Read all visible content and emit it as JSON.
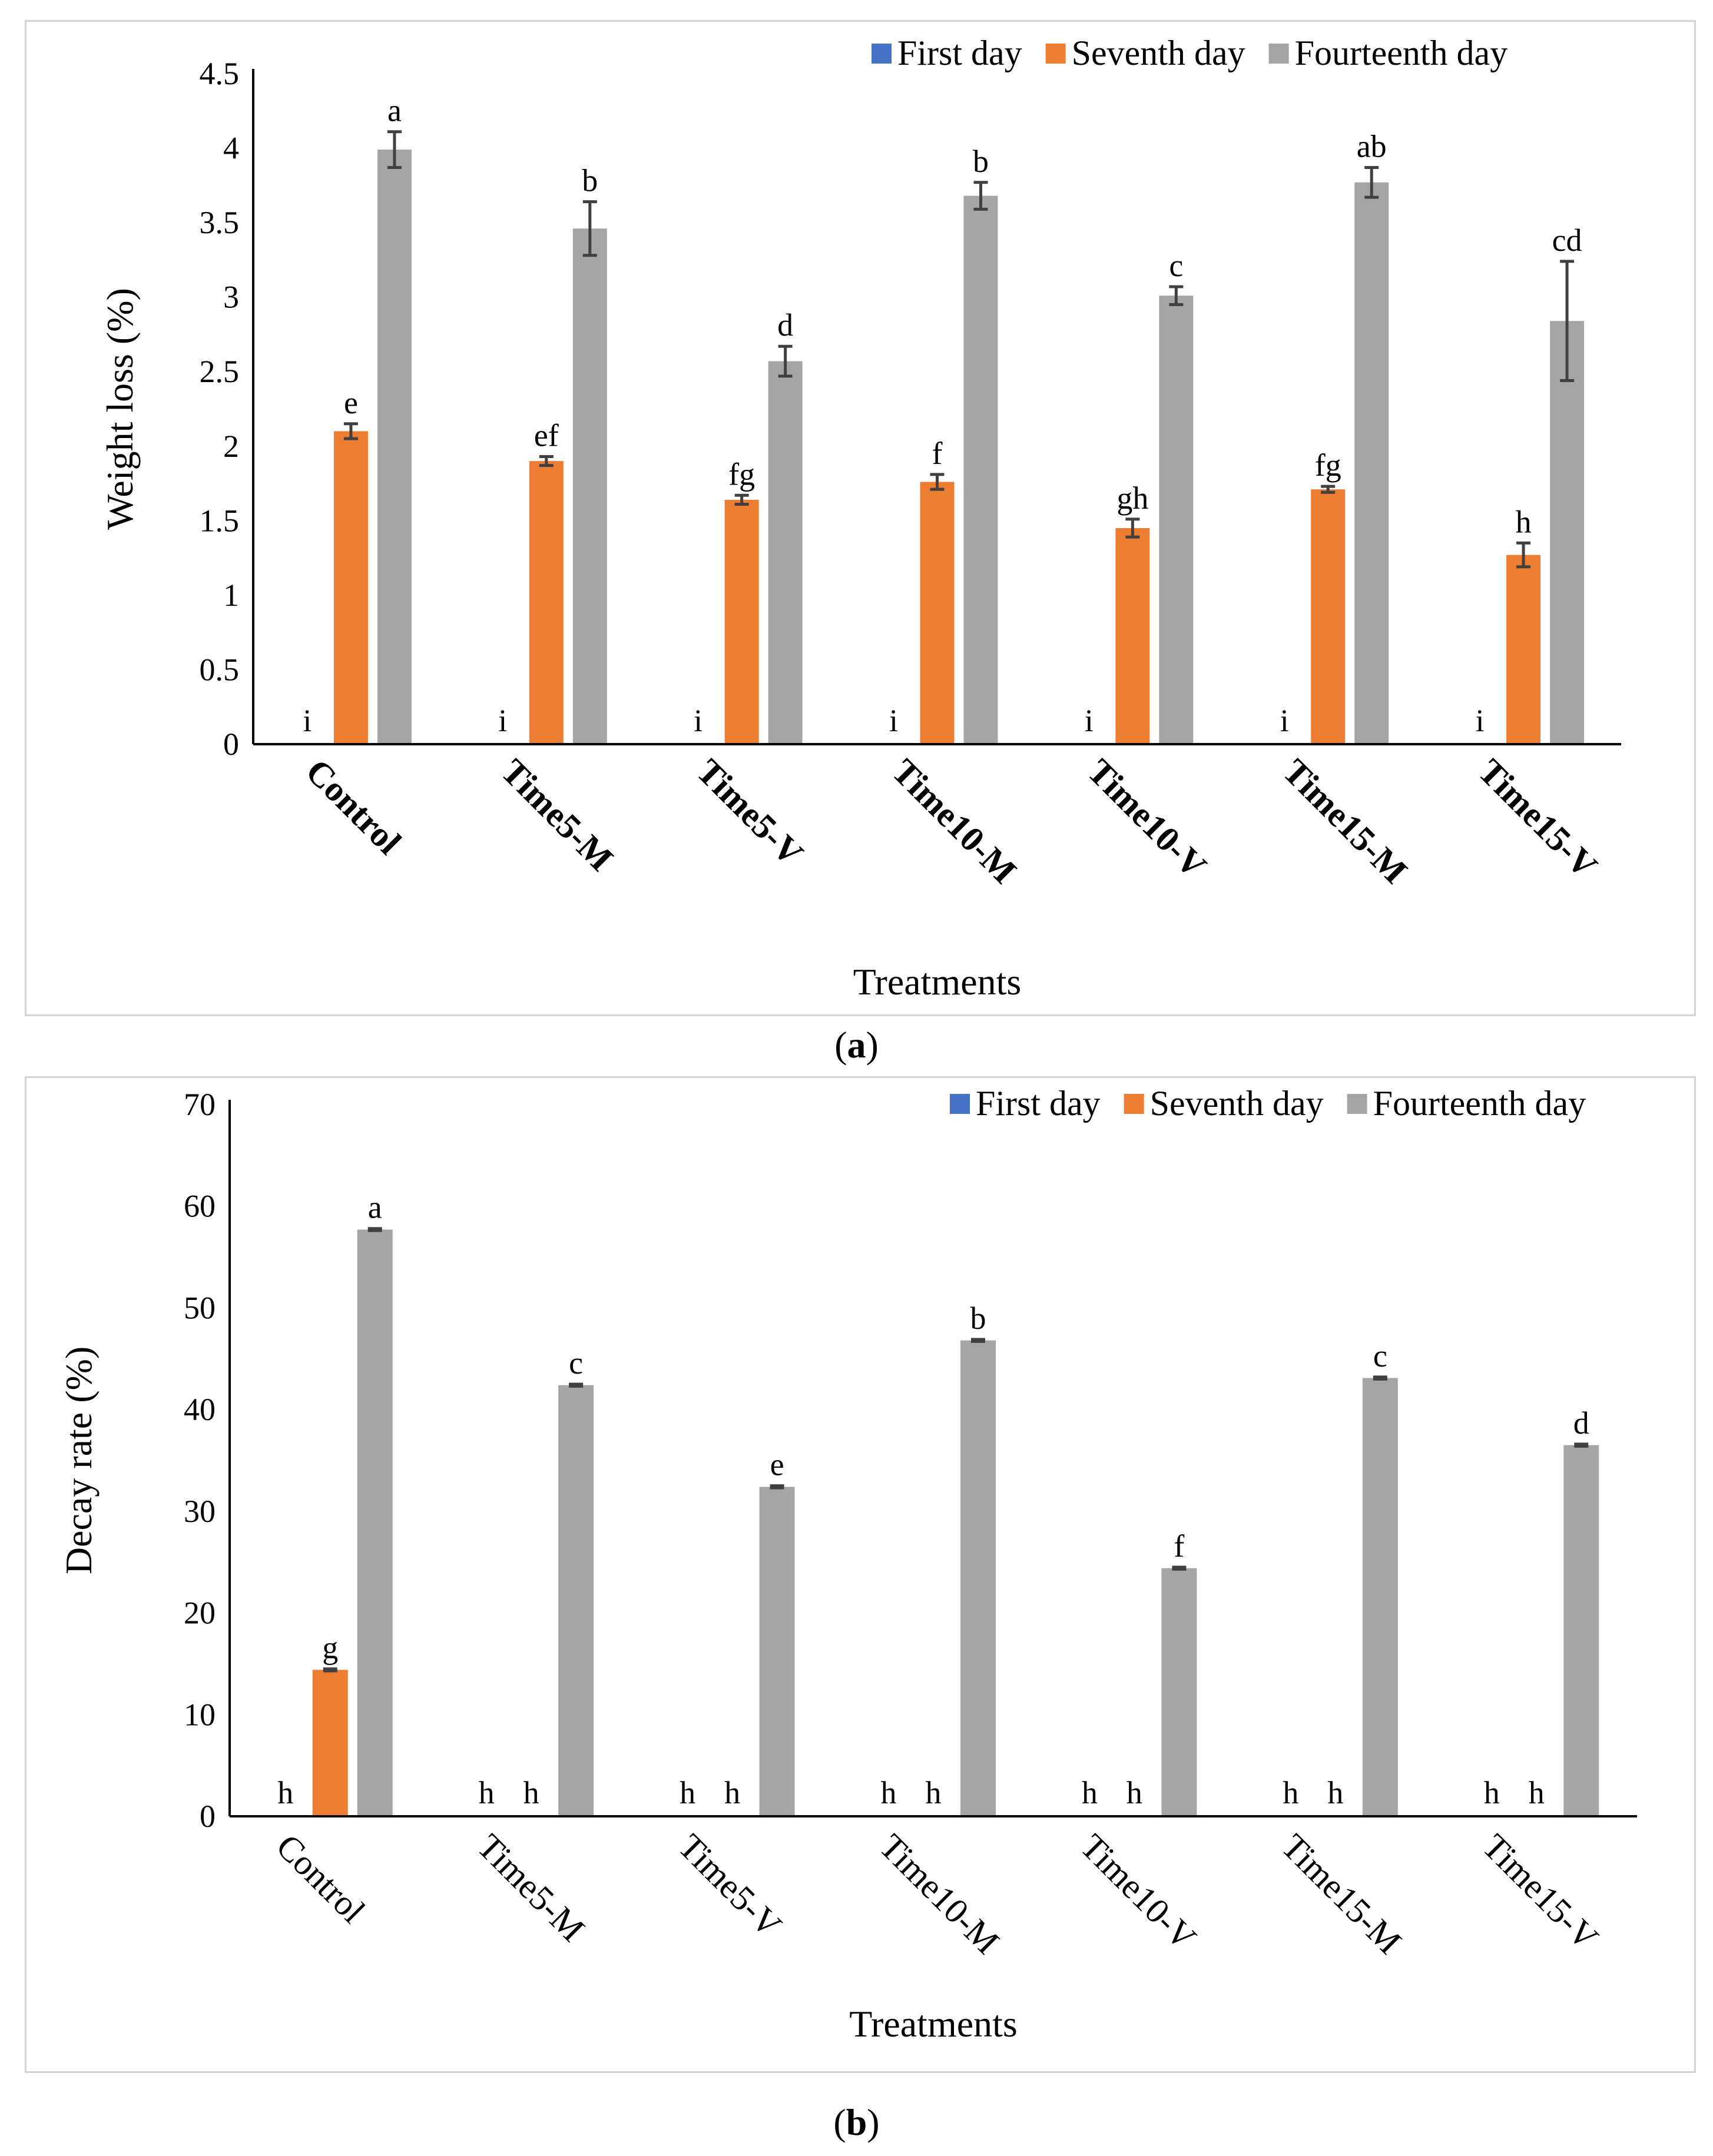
{
  "legend": [
    "First day",
    "Seventh day",
    "Fourteenth day"
  ],
  "colors": {
    "first": "#4472c4",
    "seventh": "#ed7d31",
    "fourteenth": "#a5a5a5",
    "errorbar": "#404040"
  },
  "captions": [
    {
      "open": "(",
      "label": "a",
      "close": ")"
    },
    {
      "open": "(",
      "label": "b",
      "close": ")"
    }
  ],
  "chart_data": [
    {
      "type": "bar",
      "panel": "a",
      "xlabel": "Treatments",
      "ylabel": "Weight loss (%)",
      "ylim": [
        0,
        4.5
      ],
      "yticks": [
        "0",
        "0.5",
        "1",
        "1.5",
        "2",
        "2.5",
        "3",
        "3.5",
        "4",
        "4.5"
      ],
      "categories": [
        "Control",
        "Time5-M",
        "Time5-V",
        "Time10-M",
        "Time10-V",
        "Time15-M",
        "Time15-V"
      ],
      "series": [
        {
          "name": "First day",
          "values": [
            0,
            0,
            0,
            0,
            0,
            0,
            0
          ],
          "errors": [
            0,
            0,
            0,
            0,
            0,
            0,
            0
          ],
          "letters": [
            "i",
            "i",
            "i",
            "i",
            "i",
            "i",
            "i"
          ]
        },
        {
          "name": "Seventh day",
          "values": [
            2.1,
            1.9,
            1.64,
            1.76,
            1.45,
            1.71,
            1.27
          ],
          "errors": [
            0.05,
            0.03,
            0.03,
            0.05,
            0.06,
            0.02,
            0.08
          ],
          "letters": [
            "e",
            "ef",
            "fg",
            "f",
            "gh",
            "fg",
            "h"
          ]
        },
        {
          "name": "Fourteenth day",
          "values": [
            3.99,
            3.46,
            2.57,
            3.68,
            3.01,
            3.77,
            2.84
          ],
          "errors": [
            0.12,
            0.18,
            0.1,
            0.09,
            0.06,
            0.1,
            0.4
          ],
          "letters": [
            "a",
            "b",
            "d",
            "b",
            "c",
            "ab",
            "cd"
          ]
        }
      ]
    },
    {
      "type": "bar",
      "panel": "b",
      "xlabel": "Treatments",
      "ylabel": "Decay rate (%)",
      "ylim": [
        0,
        70
      ],
      "yticks": [
        "0",
        "10",
        "20",
        "30",
        "40",
        "50",
        "60",
        "70"
      ],
      "categories": [
        "Control",
        "Time5-M",
        "Time5-V",
        "Time10-M",
        "Time10-V",
        "Time15-M",
        "Time15-V"
      ],
      "series": [
        {
          "name": "First day",
          "values": [
            0,
            0,
            0,
            0,
            0,
            0,
            0
          ],
          "errors": [
            0,
            0,
            0,
            0,
            0,
            0,
            0
          ],
          "letters": [
            "h",
            "h",
            "h",
            "h",
            "h",
            "h",
            "h"
          ]
        },
        {
          "name": "Seventh day",
          "values": [
            14.4,
            0,
            0,
            0,
            0,
            0,
            0
          ],
          "errors": [
            0.1,
            0,
            0,
            0,
            0,
            0,
            0
          ],
          "letters": [
            "g",
            "h",
            "h",
            "h",
            "h",
            "h",
            "h"
          ]
        },
        {
          "name": "Fourteenth day",
          "values": [
            57.7,
            42.4,
            32.4,
            46.8,
            24.4,
            43.1,
            36.5
          ],
          "errors": [
            0.1,
            0.1,
            0.1,
            0.1,
            0.1,
            0.1,
            0.1
          ],
          "letters": [
            "a",
            "c",
            "e",
            "b",
            "f",
            "c",
            "d"
          ]
        }
      ]
    }
  ]
}
